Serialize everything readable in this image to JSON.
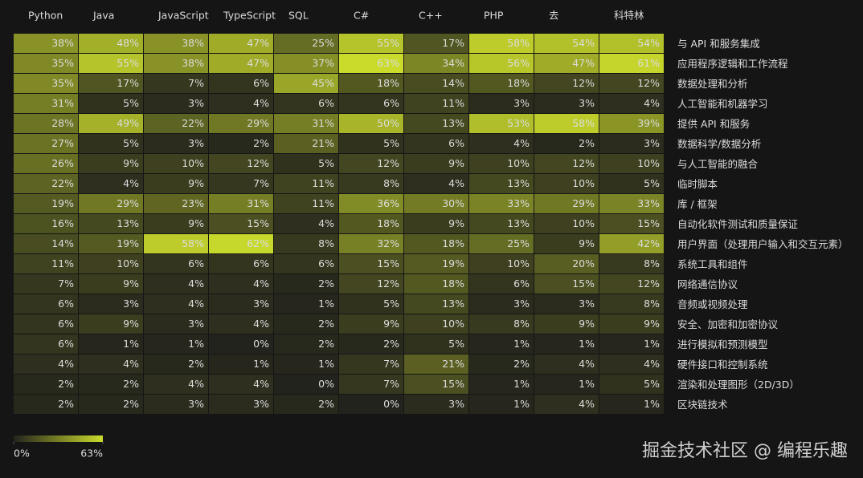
{
  "chart_data": {
    "type": "heatmap",
    "categories": [
      "Python",
      "Java",
      "JavaScript",
      "TypeScript",
      "SQL",
      "C#",
      "C++",
      "PHP",
      "去",
      "科特林"
    ],
    "rows": [
      "与 API 和服务集成",
      "应用程序逻辑和工作流程",
      "数据处理和分析",
      "人工智能和机器学习",
      "提供 API 和服务",
      "数据科学/数据分析",
      "与人工智能的融合",
      "临时脚本",
      "库 / 框架",
      "自动化软件测试和质量保证",
      "用户界面（处理用户输入和交互元素）",
      "系统工具和组件",
      "网络通信协议",
      "音频或视频处理",
      "安全、加密和加密协议",
      "进行模拟和预测模型",
      "硬件接口和控制系统",
      "渲染和处理图形（2D/3D）",
      "区块链技术"
    ],
    "values": [
      [
        38,
        48,
        38,
        47,
        25,
        55,
        17,
        58,
        54,
        54
      ],
      [
        35,
        55,
        38,
        47,
        37,
        63,
        34,
        56,
        47,
        61
      ],
      [
        35,
        17,
        7,
        6,
        45,
        18,
        14,
        18,
        12,
        12
      ],
      [
        31,
        5,
        3,
        4,
        6,
        6,
        11,
        3,
        3,
        4
      ],
      [
        28,
        49,
        22,
        29,
        31,
        50,
        13,
        53,
        58,
        39
      ],
      [
        27,
        5,
        3,
        2,
        21,
        5,
        6,
        4,
        2,
        3
      ],
      [
        26,
        9,
        10,
        12,
        5,
        12,
        9,
        10,
        12,
        10
      ],
      [
        22,
        4,
        9,
        7,
        11,
        8,
        4,
        13,
        10,
        5
      ],
      [
        19,
        29,
        23,
        31,
        11,
        36,
        30,
        33,
        29,
        33
      ],
      [
        16,
        13,
        9,
        15,
        4,
        18,
        9,
        13,
        10,
        15
      ],
      [
        14,
        19,
        58,
        62,
        8,
        32,
        18,
        25,
        9,
        42
      ],
      [
        11,
        10,
        6,
        6,
        6,
        15,
        19,
        10,
        20,
        8
      ],
      [
        7,
        9,
        4,
        4,
        2,
        12,
        18,
        6,
        15,
        12
      ],
      [
        6,
        3,
        4,
        3,
        1,
        5,
        13,
        3,
        3,
        8
      ],
      [
        6,
        9,
        3,
        4,
        2,
        9,
        10,
        8,
        9,
        9
      ],
      [
        6,
        1,
        1,
        0,
        2,
        2,
        5,
        1,
        1,
        1
      ],
      [
        4,
        4,
        2,
        1,
        1,
        7,
        21,
        2,
        4,
        4
      ],
      [
        2,
        2,
        4,
        4,
        0,
        7,
        15,
        1,
        1,
        5
      ],
      [
        2,
        2,
        3,
        3,
        2,
        0,
        3,
        1,
        4,
        1
      ]
    ],
    "value_labels": [
      [
        "38%",
        "48%",
        "38%",
        "47%",
        "25%",
        "55%",
        "17%",
        "58%",
        "54%",
        "54%"
      ],
      [
        "35%",
        "55%",
        "38%",
        "47%",
        "37%",
        "63%",
        "34%",
        "56%",
        "47%",
        "61%"
      ],
      [
        "35%",
        "17%",
        "7%",
        "6%",
        "45%",
        "18%",
        "14%",
        "18%",
        "12%",
        "12%"
      ],
      [
        "31%",
        "5%",
        "3%",
        "4%",
        "6%",
        "6%",
        "11%",
        "3%",
        "3%",
        "4%"
      ],
      [
        "28%",
        "49%",
        "22%",
        "29%",
        "31%",
        "50%",
        "13%",
        "53%",
        "58%",
        "39%"
      ],
      [
        "27%",
        "5%",
        "3%",
        "2%",
        "21%",
        "5%",
        "6%",
        "4%",
        "2%",
        "3%"
      ],
      [
        "26%",
        "9%",
        "10%",
        "12%",
        "5%",
        "12%",
        "9%",
        "10%",
        "12%",
        "10%"
      ],
      [
        "22%",
        "4%",
        "9%",
        "7%",
        "11%",
        "8%",
        "4%",
        "13%",
        "10%",
        "5%"
      ],
      [
        "19%",
        "29%",
        "23%",
        "31%",
        "11%",
        "36%",
        "30%",
        "33%",
        "29%",
        "33%"
      ],
      [
        "16%",
        "13%",
        "9%",
        "15%",
        "4%",
        "18%",
        "9%",
        "13%",
        "10%",
        "15%"
      ],
      [
        "14%",
        "19%",
        "58%",
        "62%",
        "8%",
        "32%",
        "18%",
        "25%",
        "9%",
        "42%"
      ],
      [
        "11%",
        "10%",
        "6%",
        "6%",
        "6%",
        "15%",
        "19%",
        "10%",
        "20%",
        "8%"
      ],
      [
        "7%",
        "9%",
        "4%",
        "4%",
        "2%",
        "12%",
        "18%",
        "6%",
        "15%",
        "12%"
      ],
      [
        "6%",
        "3%",
        "4%",
        "3%",
        "1%",
        "5%",
        "13%",
        "3%",
        "3%",
        "8%"
      ],
      [
        "6%",
        "9%",
        "3%",
        "4%",
        "2%",
        "9%",
        "10%",
        "8%",
        "9%",
        "9%"
      ],
      [
        "6%",
        "1%",
        "1%",
        "0%",
        "2%",
        "2%",
        "5%",
        "1%",
        "1%",
        "1%"
      ],
      [
        "4%",
        "4%",
        "2%",
        "1%",
        "1%",
        "7%",
        "21%",
        "2%",
        "4%",
        "4%"
      ],
      [
        "2%",
        "2%",
        "4%",
        "4%",
        "0%",
        "7%",
        "15%",
        "1%",
        "1%",
        "5%"
      ],
      [
        "2%",
        "2%",
        "3%",
        "3%",
        "2%",
        "0%",
        "3%",
        "1%",
        "4%",
        "1%"
      ]
    ],
    "clim": [
      0,
      63
    ],
    "cticks": [
      {
        "value": 0,
        "label": "0%"
      },
      {
        "value": 63,
        "label": "63%"
      }
    ],
    "cmap": [
      "#23231d",
      "#cadb2c"
    ],
    "watermark": "掘金技术社区 @ 编程乐趣"
  }
}
